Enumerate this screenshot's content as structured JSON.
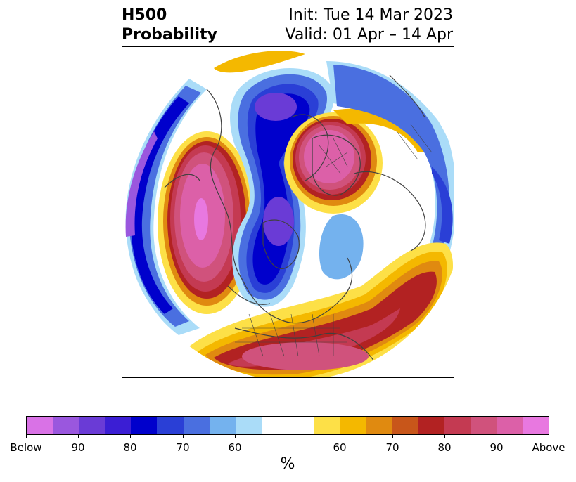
{
  "title": {
    "left_line1": "H500",
    "left_line2": "Probability",
    "right_line1": "Init: Tue 14 Mar 2023",
    "right_line2": "Valid: 01 Apr – 14 Apr"
  },
  "colorbar": {
    "unit": "%",
    "colors": [
      "#d972e6",
      "#9a57de",
      "#6a3bd6",
      "#3b1ed4",
      "#0000cc",
      "#2a3fd6",
      "#4a6fe0",
      "#74b2ee",
      "#aadcf8",
      "#ffffff",
      "#ffffff",
      "#fde047",
      "#f4b800",
      "#e08a10",
      "#c8561a",
      "#b22222",
      "#c43a52",
      "#d0527c",
      "#dc60a8",
      "#e878e0"
    ],
    "tick_labels": [
      "Below",
      "90",
      "80",
      "70",
      "60",
      "60",
      "70",
      "80",
      "90",
      "Above"
    ]
  },
  "colors": {
    "below_deep": "#0000cc",
    "above_deep": "#b22222",
    "coast": "#404040"
  }
}
